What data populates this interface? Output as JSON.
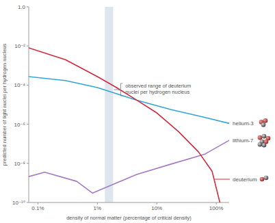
{
  "chart_data": {
    "type": "line",
    "log": true,
    "grid": false,
    "x_label": "density of normal matter (percentage of critical density)",
    "y_label": "predicted number of light nuclei per hydrogen nucleus",
    "xlim": [
      0.07,
      165
    ],
    "ylim": [
      1e-10,
      1
    ],
    "xticks": [
      {
        "value": 0.1,
        "label": "0.1%"
      },
      {
        "value": 1,
        "label": "1%"
      },
      {
        "value": 10,
        "label": "10%"
      },
      {
        "value": 100,
        "label": "100%"
      }
    ],
    "yticks": [
      {
        "value": 1,
        "label": "1.0"
      },
      {
        "value": 0.01,
        "label": "10⁻²"
      },
      {
        "value": 0.0001,
        "label": "10⁻⁴"
      },
      {
        "value": 1e-06,
        "label": "10⁻⁶"
      },
      {
        "value": 1e-08,
        "label": "10⁻⁸"
      },
      {
        "value": 1e-10,
        "label": "10⁻¹⁰"
      }
    ],
    "shaded_range": [
      1.34,
      1.84
    ],
    "annotations": [
      "observed range of deuterium",
      "nuclei per hydrogen nucleus"
    ],
    "series": [
      {
        "name": "helium-3",
        "color": "#2fa6d6",
        "x": [
          0.07,
          0.29,
          1,
          4.6,
          17,
          65,
          165
        ],
        "values": [
          0.00027,
          0.00017,
          7.5e-05,
          1.7e-05,
          5.7e-06,
          2.2e-06,
          1.1e-06
        ]
      },
      {
        "name": "lithium-7",
        "color": "#a679c4",
        "x": [
          0.07,
          0.13,
          0.45,
          0.83,
          1.6,
          4.6,
          17,
          65,
          165
        ],
        "values": [
          2.1e-09,
          3.5e-09,
          1.2e-09,
          3e-10,
          7e-10,
          2.7e-09,
          9e-09,
          3e-08,
          1.5e-07
        ]
      },
      {
        "name": "deuterium",
        "color": "#d2283c",
        "x": [
          0.07,
          0.29,
          1,
          2.1,
          4.6,
          10,
          23,
          50,
          85,
          120
        ],
        "values": [
          0.008,
          0.002,
          0.00027,
          7.5e-05,
          1.7e-05,
          3.8e-06,
          4.3e-07,
          3.9e-08,
          4e-09,
          6e-11
        ]
      }
    ]
  }
}
